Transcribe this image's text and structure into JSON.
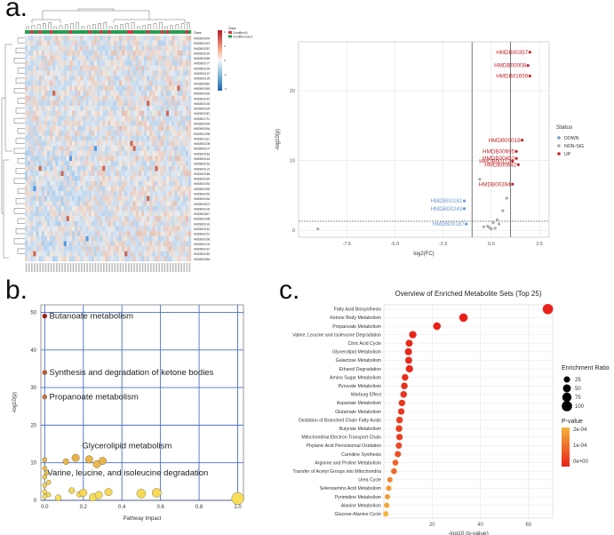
{
  "panels": {
    "a": "a.",
    "b": "b.",
    "c": "c."
  },
  "heatmap": {
    "class_title": "Class",
    "legend_title": "Class",
    "legend_items": [
      {
        "label": "Condition B",
        "color": "#e0334a"
      },
      {
        "label": "Condition low-3",
        "color": "#2a9b4e"
      }
    ],
    "scale_ticks": [
      "4",
      "2",
      "0",
      "-2",
      "-4"
    ],
    "row_labels": [
      "HMDB00644",
      "HMDB00319",
      "HMDB00357",
      "HMDB00160",
      "HMDB00569",
      "HMDB00177",
      "HMDB00169",
      "HMDB00167",
      "HMDB00125",
      "HMDB00881",
      "HMDB00063",
      "HMDB00046",
      "HMDB00019",
      "HMDB00159",
      "HMDB00029",
      "HMDB00087",
      "HMDB01711",
      "HMDB00906",
      "HMDB00054",
      "HMDB01258",
      "HMDB01311",
      "HMDB00208",
      "HMDB00107",
      "HMDB00062",
      "HMDB00164",
      "HMDB00163",
      "HMDB00123",
      "HMDB00266",
      "HMDB00264",
      "HMDB00254",
      "HMDB00050",
      "HMDB00092",
      "HMDB00264",
      "HMDB00574",
      "HMDB00146",
      "HMDB02847",
      "HMDB00098",
      "HMDB00142",
      "HMDB00161",
      "HMDB00157",
      "HMDB00306",
      "HMDB00133",
      "HMDB00167",
      "HMDB00452",
      "HMDB00064"
    ]
  },
  "volcano": {
    "xlabel": "log2(FC)",
    "ylabel": "-log10(p)",
    "legend_title": "Status",
    "legend_items": [
      {
        "label": "DOWN",
        "color": "#6b9bd2"
      },
      {
        "label": "NON-SIG",
        "color": "#aaaaaa"
      },
      {
        "label": "UP",
        "color": "#c0282d"
      }
    ],
    "x_ticks": [
      "-7.5",
      "-5.0",
      "-2.5",
      "0.0",
      "2.5"
    ],
    "y_ticks": [
      "0",
      "10",
      "20"
    ],
    "labels_up": [
      "HMDB00357",
      "HMDB00008",
      "HMDB01659",
      "HMDB00019",
      "HMDB00695",
      "HMDB00452",
      "HMDB00112",
      "HMDB00642",
      "HMDB00394"
    ],
    "labels_down": [
      "HMDB00161",
      "HMDB00243",
      "HMDB00187"
    ]
  },
  "pathway": {
    "xlabel": "Pathway Impact",
    "ylabel": "-log10(p)",
    "x_ticks": [
      "0.0",
      "0.2",
      "0.4",
      "0.6",
      "0.8",
      "1.0"
    ],
    "y_ticks": [
      "0",
      "10",
      "20",
      "30",
      "40",
      "50"
    ],
    "annotations": [
      "Butanoate metabolism",
      "Synthesis and degradation of ketone bodies",
      "Propanoate metabolism",
      "Glycerolipid metabolism",
      "Varine, leucine, and isoleucine degradation"
    ]
  },
  "enrichment": {
    "title": "Overview of Enriched Metabolite Sets (Top 25)",
    "xlabel": "-log10 (p-value)",
    "x_ticks": [
      "20",
      "40",
      "60"
    ],
    "legend_size_title": "Enrichment Ratio",
    "legend_size_values": [
      "25",
      "50",
      "75",
      "100"
    ],
    "legend_color_title": "P-value",
    "legend_color_ticks": [
      "2e-04",
      "1e-04",
      "0e+00"
    ],
    "colors": {
      "low": "#e8221a",
      "high": "#f5b43c"
    }
  },
  "chart_data": [
    {
      "type": "scatter",
      "title": "",
      "xlabel": "log2(FC)",
      "ylabel": "-log10(p)",
      "xlim": [
        -10,
        3
      ],
      "ylim": [
        -1,
        27
      ],
      "series": [
        {
          "name": "UP",
          "points": [
            {
              "x": 2.0,
              "y": 25.5,
              "label": "HMDB00357"
            },
            {
              "x": 1.9,
              "y": 23.6,
              "label": "HMDB00008"
            },
            {
              "x": 2.0,
              "y": 22.1,
              "label": "HMDB01659"
            },
            {
              "x": 1.6,
              "y": 12.9,
              "label": "HMDB00019"
            },
            {
              "x": 1.3,
              "y": 11.3,
              "label": "HMDB00695"
            },
            {
              "x": 1.3,
              "y": 10.3,
              "label": "HMDB00452"
            },
            {
              "x": 1.1,
              "y": 9.9,
              "label": "HMDB00112"
            },
            {
              "x": 1.4,
              "y": 9.4,
              "label": "HMDB00642"
            },
            {
              "x": 1.1,
              "y": 6.6,
              "label": "HMDB00394"
            }
          ]
        },
        {
          "name": "DOWN",
          "points": [
            {
              "x": -1.4,
              "y": 4.2,
              "label": "HMDB00161"
            },
            {
              "x": -1.4,
              "y": 3.1,
              "label": "HMDB00243"
            },
            {
              "x": -1.3,
              "y": 0.9,
              "label": "HMDB00187"
            }
          ]
        },
        {
          "name": "NON-SIG",
          "points": [
            {
              "x": -9.0,
              "y": 0.2
            },
            {
              "x": -0.6,
              "y": 7.3
            },
            {
              "x": 0.8,
              "y": 4.6
            },
            {
              "x": 0.6,
              "y": 2.8
            },
            {
              "x": 0.3,
              "y": 1.5
            },
            {
              "x": 0.1,
              "y": 1.1
            },
            {
              "x": -0.2,
              "y": 0.6
            },
            {
              "x": 0.4,
              "y": 0.9
            },
            {
              "x": 0.0,
              "y": 0.2
            },
            {
              "x": -0.1,
              "y": 0.4
            },
            {
              "x": 0.2,
              "y": 0.3
            },
            {
              "x": -0.4,
              "y": 0.5
            }
          ]
        }
      ]
    },
    {
      "type": "scatter",
      "title": "",
      "xlabel": "Pathway Impact",
      "ylabel": "-log10(p)",
      "xlim": [
        -0.02,
        1.03
      ],
      "ylim": [
        0,
        52
      ],
      "points": [
        {
          "x": 0.0,
          "y": 49.0,
          "size": 3,
          "label": "Butanoate metabolism"
        },
        {
          "x": 0.0,
          "y": 34.0,
          "size": 3,
          "label": "Synthesis and degradation of ketone bodies"
        },
        {
          "x": 0.0,
          "y": 27.5,
          "size": 3,
          "label": "Propanoate metabolism"
        },
        {
          "x": 0.0,
          "y": 10.8,
          "size": 3
        },
        {
          "x": 0.0,
          "y": 8.5,
          "size": 3
        },
        {
          "x": 0.0,
          "y": 6.2,
          "size": 3
        },
        {
          "x": 0.0,
          "y": 4.0,
          "size": 3
        },
        {
          "x": 0.0,
          "y": 2.3,
          "size": 3
        },
        {
          "x": 0.0,
          "y": 1.0,
          "size": 3
        },
        {
          "x": 0.02,
          "y": 4.8,
          "size": 3
        },
        {
          "x": 0.02,
          "y": 1.5,
          "size": 3
        },
        {
          "x": 0.07,
          "y": 0.7,
          "size": 4
        },
        {
          "x": 0.11,
          "y": 10.3,
          "size": 4
        },
        {
          "x": 0.14,
          "y": 2.6,
          "size": 4
        },
        {
          "x": 0.16,
          "y": 11.3,
          "size": 5,
          "label": "Glycerolipid metabolism"
        },
        {
          "x": 0.18,
          "y": 1.6,
          "size": 4
        },
        {
          "x": 0.2,
          "y": 2.0,
          "size": 5
        },
        {
          "x": 0.23,
          "y": 10.9,
          "size": 5
        },
        {
          "x": 0.25,
          "y": 0.8,
          "size": 5
        },
        {
          "x": 0.27,
          "y": 9.6,
          "size": 5
        },
        {
          "x": 0.28,
          "y": 1.4,
          "size": 5
        },
        {
          "x": 0.3,
          "y": 10.5,
          "size": 5
        },
        {
          "x": 0.33,
          "y": 2.2,
          "size": 5
        },
        {
          "x": 0.5,
          "y": 1.8,
          "size": 6
        },
        {
          "x": 0.58,
          "y": 2.0,
          "size": 6
        },
        {
          "x": 1.0,
          "y": 0.5,
          "size": 8
        },
        {
          "x": 0.01,
          "y": 7.3,
          "size": 3,
          "label": "Varine, leucine, and isoleucine degradation"
        }
      ]
    },
    {
      "type": "scatter",
      "title": "Overview of Enriched Metabolite Sets (Top 25)",
      "xlabel": "-log10 (p-value)",
      "ylabel": "",
      "xlim": [
        0,
        70
      ],
      "categories": [
        "Fatty Acid Biosynthesis",
        "Ketone Body Metabolism",
        "Propanoate Metabolism",
        "Valine, Leucine and Isoleucine Degradation",
        "Citric Acid Cycle",
        "Glycerolipid Metabolism",
        "Galactose Metabolism",
        "Ethanol Degradation",
        "Amino Sugar Metabolism",
        "Pyruvate Metabolism",
        "Warburg Effect",
        "Aspartate Metabolism",
        "Glutamate Metabolism",
        "Oxidation of Branched Chain Fatty Acids",
        "Butyrate Metabolism",
        "Mitochondrial Electron Transport Chain",
        "Phytanic Acid Peroxisomal Oxidation",
        "Carnitine Synthesis",
        "Arginine and Proline Metabolism",
        "Transfer of Acetyl Groups into Mitochondria",
        "Urea Cycle",
        "Selenoamino Acid Metabolism",
        "Pyrimidine Metabolism",
        "Alanine Metabolism",
        "Glucose-Alanine Cycle"
      ],
      "x": [
        68,
        33,
        22,
        12,
        10.5,
        10.2,
        10.3,
        10.6,
        8.8,
        8.5,
        8.2,
        7.5,
        7.2,
        6.5,
        6.3,
        6.5,
        6.2,
        5.8,
        4.8,
        4.2,
        2.5,
        2.0,
        1.5,
        1.2,
        0.8
      ],
      "enrichment_ratio": [
        100,
        60,
        45,
        40,
        35,
        38,
        35,
        40,
        30,
        30,
        30,
        28,
        28,
        30,
        30,
        28,
        25,
        25,
        20,
        20,
        15,
        15,
        15,
        15,
        15
      ],
      "pvalue_fraction": [
        0,
        0,
        0,
        0.02,
        0.05,
        0.05,
        0.05,
        0.05,
        0.1,
        0.1,
        0.12,
        0.15,
        0.15,
        0.2,
        0.2,
        0.2,
        0.25,
        0.3,
        0.45,
        0.5,
        0.7,
        0.8,
        0.85,
        0.9,
        1.0
      ]
    }
  ]
}
